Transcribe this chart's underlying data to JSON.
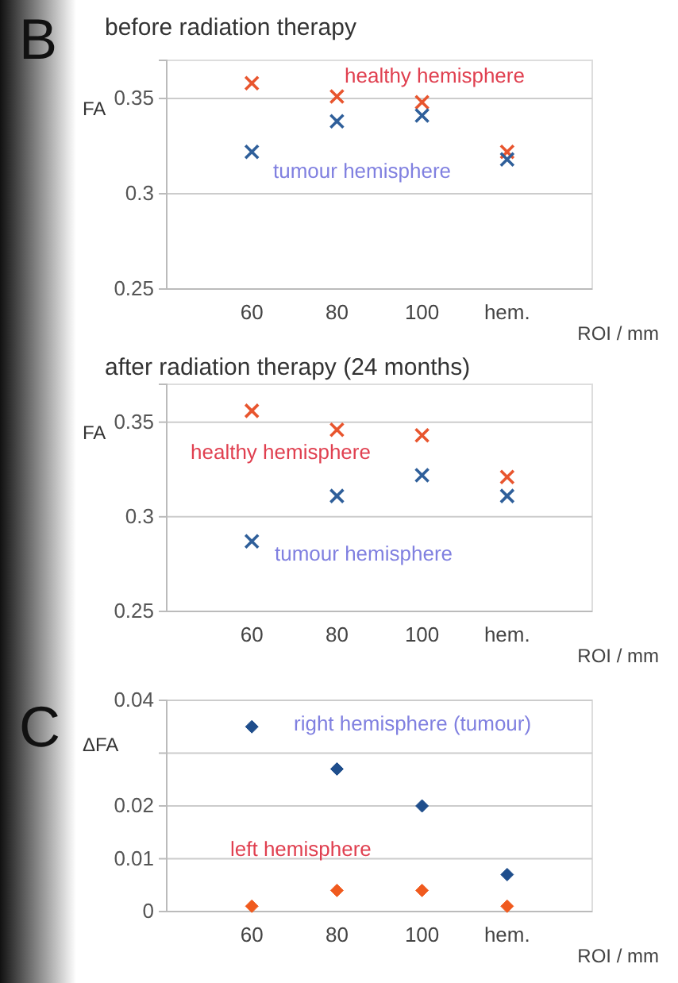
{
  "chart_data": [
    {
      "type": "scatter",
      "title": "before radiation therapy",
      "xlabel": "ROI / mm",
      "ylabel": "FA",
      "categories": [
        "60",
        "80",
        "100",
        "hem."
      ],
      "ylim": [
        0.25,
        0.37
      ],
      "yticks": [
        0.25,
        0.3,
        0.35
      ],
      "grid": "y",
      "marker": "cross",
      "annotations": [
        "B"
      ],
      "series": [
        {
          "name": "healthy hemisphere",
          "color": "#e8552e",
          "values": [
            0.358,
            0.351,
            0.348,
            0.322
          ]
        },
        {
          "name": "tumour hemisphere",
          "color": "#2f5f9a",
          "values": [
            0.322,
            0.338,
            0.341,
            0.318
          ]
        }
      ]
    },
    {
      "type": "scatter",
      "title": "after radiation therapy (24 months)",
      "xlabel": "ROI / mm",
      "ylabel": "FA",
      "categories": [
        "60",
        "80",
        "100",
        "hem."
      ],
      "ylim": [
        0.25,
        0.37
      ],
      "yticks": [
        0.25,
        0.3,
        0.35
      ],
      "grid": "y",
      "marker": "cross",
      "series": [
        {
          "name": "healthy hemisphere",
          "color": "#e8552e",
          "values": [
            0.356,
            0.346,
            0.343,
            0.321
          ]
        },
        {
          "name": "tumour hemisphere",
          "color": "#2f5f9a",
          "values": [
            0.287,
            0.311,
            0.322,
            0.311
          ]
        }
      ]
    },
    {
      "type": "scatter",
      "xlabel": "ROI / mm",
      "ylabel": "ΔFA",
      "categories": [
        "60",
        "80",
        "100",
        "hem."
      ],
      "ylim": [
        0,
        0.04
      ],
      "yticks": [
        0,
        0.01,
        0.02,
        {
          "value": 0.03,
          "label": null
        },
        0.04
      ],
      "grid": "y",
      "marker": "diamond",
      "annotations": [
        "C"
      ],
      "series": [
        {
          "name": "right hemisphere (tumour)",
          "color": "#1f4e8c",
          "values": [
            0.035,
            0.027,
            0.02,
            0.007
          ]
        },
        {
          "name": "left hemisphere",
          "color": "#f05a1e",
          "values": [
            0.001,
            0.004,
            0.004,
            0.001
          ]
        }
      ]
    }
  ]
}
